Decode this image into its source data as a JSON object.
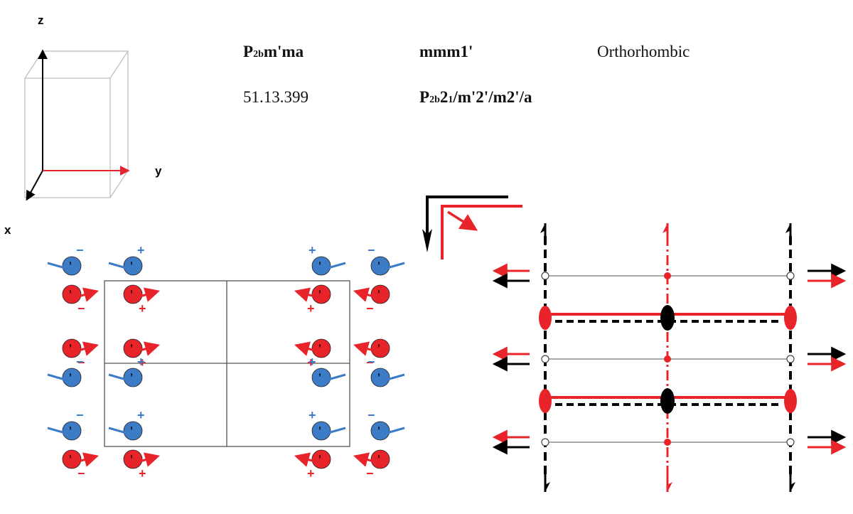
{
  "axes": {
    "x_label": "x",
    "y_label": "y",
    "z_label": "z"
  },
  "header": {
    "symbol_prefix": "P",
    "symbol_sub": "2b",
    "symbol_suffix": "m'ma",
    "point_group": "mmm1'",
    "crystal_system": "Orthorhombic",
    "bns_number": "51.13.399",
    "full_prefix": "P",
    "full_sub_a": "2b",
    "full_mid": "2",
    "full_sub_b": "1",
    "full_suffix": "/m'2'/m2'/a"
  },
  "moment_signs": {
    "plus": "+",
    "minus": "−",
    "prime_mark": "’"
  },
  "colors": {
    "red": "#e8242a",
    "blue": "#3c7cc6",
    "black": "#000000",
    "grid": "#555555"
  }
}
